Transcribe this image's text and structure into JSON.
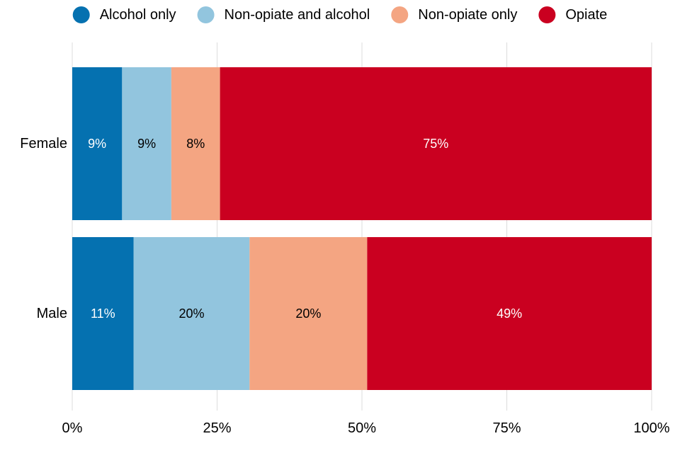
{
  "chart_data": {
    "type": "bar",
    "orientation": "horizontal",
    "stacked": true,
    "normalized": true,
    "title": "",
    "xlabel": "",
    "ylabel": "",
    "categories": [
      "Female",
      "Male"
    ],
    "series": [
      {
        "name": "Alcohol only",
        "color": "#0571b0",
        "values": [
          8.6,
          10.6
        ],
        "labels": [
          "9%",
          "11%"
        ],
        "label_color": "#ffffff"
      },
      {
        "name": "Non-opiate and alcohol",
        "color": "#92c5de",
        "values": [
          8.5,
          20.0
        ],
        "labels": [
          "9%",
          "20%"
        ],
        "label_color": "#000000"
      },
      {
        "name": "Non-opiate only",
        "color": "#f4a582",
        "values": [
          8.4,
          20.3
        ],
        "labels": [
          "8%",
          "20%"
        ],
        "label_color": "#000000"
      },
      {
        "name": "Opiate",
        "color": "#ca0020",
        "values": [
          74.5,
          49.1
        ],
        "labels": [
          "75%",
          "49%"
        ],
        "label_color": "#ffffff"
      }
    ],
    "xlim": [
      0,
      100
    ],
    "x_ticks": [
      0,
      25,
      50,
      75,
      100
    ],
    "x_tick_labels": [
      "0%",
      "25%",
      "50%",
      "75%",
      "100%"
    ],
    "grid": "vertical",
    "legend_position": "top"
  }
}
